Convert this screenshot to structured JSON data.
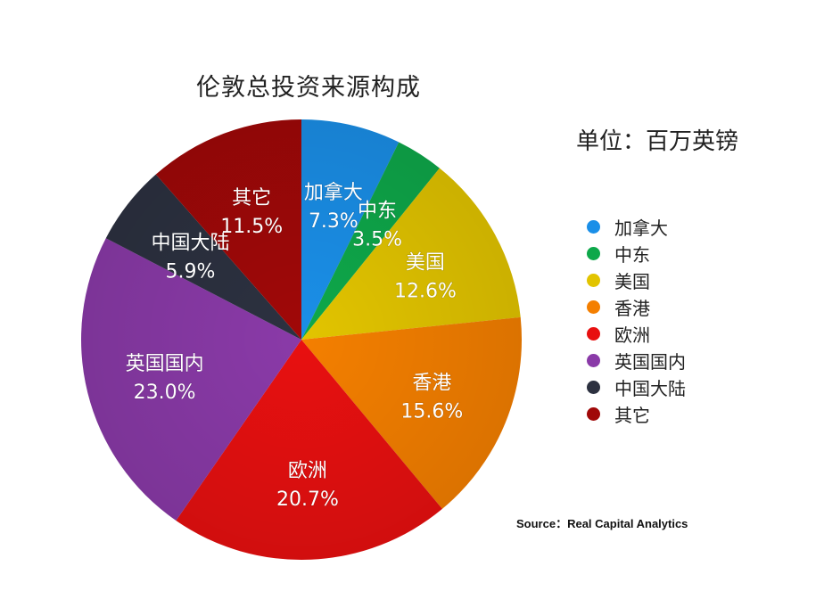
{
  "title": "伦敦总投资来源构成",
  "unit": "单位：百万英镑",
  "source": "Source：Real Capital Analytics",
  "chart_data": {
    "type": "pie",
    "categories": [
      "加拿大",
      "中东",
      "美国",
      "香港",
      "欧洲",
      "英国国内",
      "中国大陆",
      "其它"
    ],
    "values": [
      7.3,
      3.5,
      12.6,
      15.6,
      20.7,
      23.0,
      5.9,
      11.5
    ],
    "value_labels": [
      "7.3%",
      "3.5%",
      "12.6%",
      "15.6%",
      "20.7%",
      "23.0%",
      "5.9%",
      "11.5%"
    ],
    "colors": [
      "#1a8fe8",
      "#0ea84a",
      "#e2c400",
      "#f47f00",
      "#e81010",
      "#8a3aa8",
      "#2c3140",
      "#a00808"
    ],
    "legend_position": "right",
    "start": "top, clockwise"
  }
}
